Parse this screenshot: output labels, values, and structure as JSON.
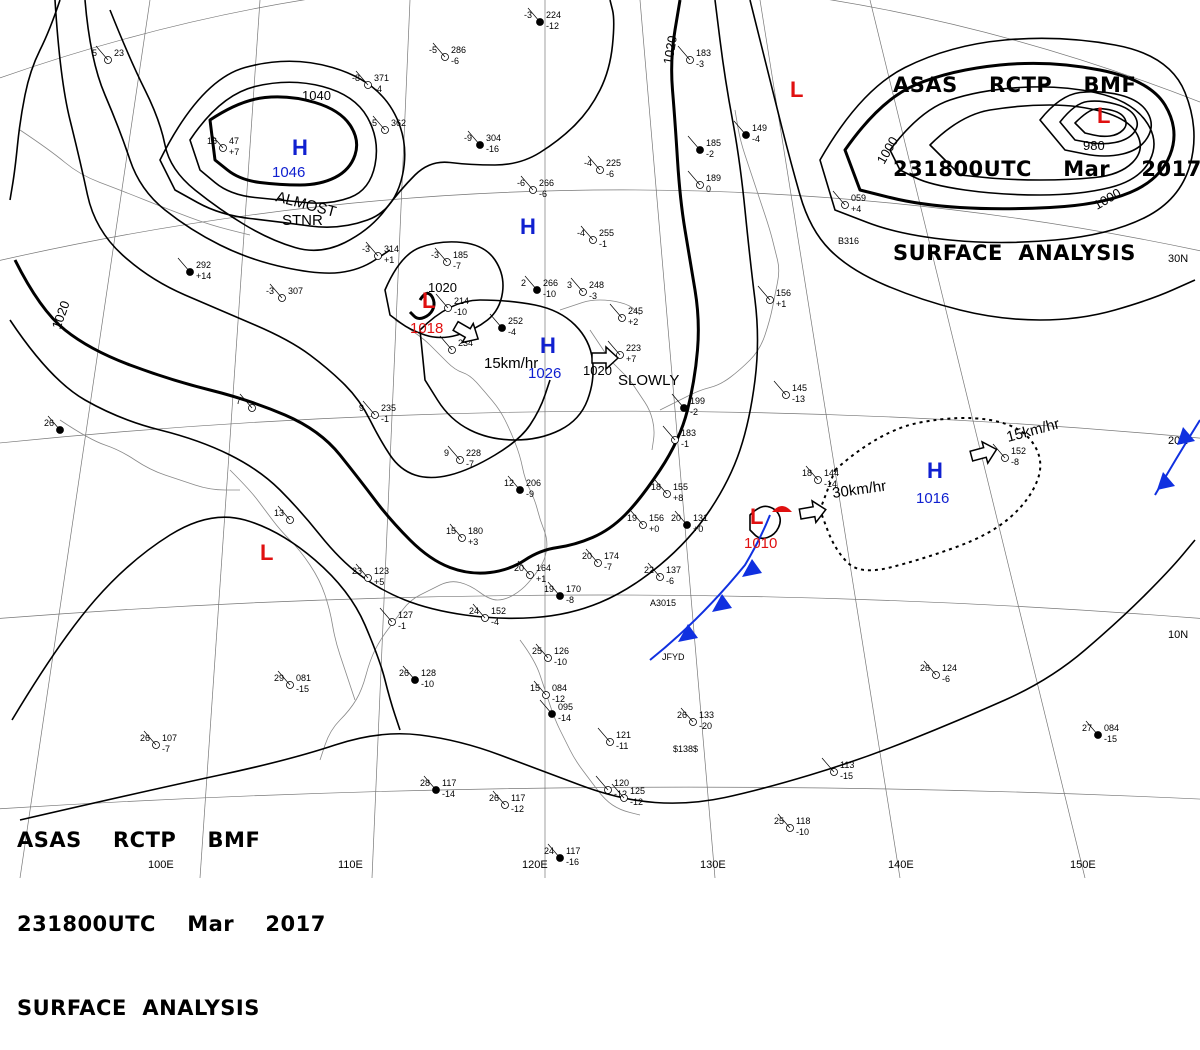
{
  "header": {
    "line1": "ASAS    RCTP    BMF",
    "line2": "231800UTC    Mar    2017",
    "line3": "SURFACE  ANALYSIS"
  },
  "footer": {
    "line1": "ASAS    RCTP    BMF",
    "line2": "231800UTC    Mar    2017",
    "line3": "SURFACE  ANALYSIS"
  },
  "grid": {
    "latitude_labels": [
      "30N",
      "20N",
      "10N"
    ],
    "longitude_labels": [
      "100E",
      "110E",
      "120E",
      "130E",
      "140E",
      "150E"
    ]
  },
  "isobar_labels": [
    "1040",
    "1020",
    "1020",
    "1020",
    "1020",
    "1000",
    "1000",
    "980"
  ],
  "pressure_centers": [
    {
      "type": "H",
      "pressure": "1046",
      "color": "#1020d0"
    },
    {
      "type": "H",
      "pressure": "",
      "color": "#1020d0"
    },
    {
      "type": "H",
      "pressure": "1026",
      "color": "#1020d0"
    },
    {
      "type": "H",
      "pressure": "1016",
      "color": "#1020d0"
    },
    {
      "type": "L",
      "pressure": "1018",
      "color": "#e01010"
    },
    {
      "type": "L",
      "pressure": "1010",
      "color": "#e01010"
    },
    {
      "type": "L",
      "pressure": "",
      "color": "#e01010"
    },
    {
      "type": "L",
      "pressure": "",
      "color": "#e01010"
    },
    {
      "type": "L",
      "pressure": "980",
      "color": "#e01010"
    }
  ],
  "annotations": {
    "almost": "ALMOST",
    "stnr": "STNR",
    "slowly": "SLOWLY",
    "speed_1018": "15km/hr",
    "speed_1010": "30km/hr",
    "speed_1016": "15km/hr"
  },
  "station_plots": [
    {
      "a": "-3",
      "b": "224",
      "c": "-12"
    },
    {
      "a": "-5",
      "b": "286",
      "c": "-6"
    },
    {
      "a": "-8",
      "b": "371",
      "c": "-4"
    },
    {
      "a": "-5",
      "b": "362",
      "c": ""
    },
    {
      "a": "-9",
      "b": "304",
      "c": "-16"
    },
    {
      "a": "-4",
      "b": "225",
      "c": "-6"
    },
    {
      "a": "-6",
      "b": "266",
      "c": "-6"
    },
    {
      "a": "-4",
      "b": "255",
      "c": "-1"
    },
    {
      "a": "2",
      "b": "266",
      "c": "-10"
    },
    {
      "a": "3",
      "b": "248",
      "c": "-3"
    },
    {
      "a": "-3",
      "b": "185",
      "c": "-7"
    },
    {
      "a": "",
      "b": "214",
      "c": "-10"
    },
    {
      "a": "",
      "b": "252",
      "c": "-4"
    },
    {
      "a": "",
      "b": "234",
      "c": ""
    },
    {
      "a": "-3",
      "b": "314",
      "c": "+1"
    },
    {
      "a": "-3",
      "b": "307",
      "c": ""
    },
    {
      "a": "",
      "b": "292",
      "c": "+14"
    },
    {
      "a": "",
      "b": "245",
      "c": "+2"
    },
    {
      "a": "",
      "b": "223",
      "c": "+7"
    },
    {
      "a": "",
      "b": "183",
      "c": "-3"
    },
    {
      "a": "",
      "b": "185",
      "c": "-2"
    },
    {
      "a": "",
      "b": "189",
      "c": "0"
    },
    {
      "a": "",
      "b": "156",
      "c": "+1"
    },
    {
      "a": "",
      "b": "145",
      "c": "-13"
    },
    {
      "a": "",
      "b": "199",
      "c": "-2"
    },
    {
      "a": "",
      "b": "183",
      "c": "-1"
    },
    {
      "a": "9",
      "b": "235",
      "c": "-1"
    },
    {
      "a": "9",
      "b": "228",
      "c": "-7"
    },
    {
      "a": "12",
      "b": "206",
      "c": "-9"
    },
    {
      "a": "15",
      "b": "180",
      "c": "+3"
    },
    {
      "a": "18",
      "b": "155",
      "c": "+8"
    },
    {
      "a": "19",
      "b": "156",
      "c": "+0"
    },
    {
      "a": "20",
      "b": "131",
      "c": "+0"
    },
    {
      "a": "20",
      "b": "174",
      "c": "-7"
    },
    {
      "a": "22",
      "b": "137",
      "c": "-6"
    },
    {
      "a": "20",
      "b": "164",
      "c": "+1"
    },
    {
      "a": "19",
      "b": "170",
      "c": "-8"
    },
    {
      "a": "23",
      "b": "123",
      "c": "+5"
    },
    {
      "a": "24",
      "b": "152",
      "c": "-4"
    },
    {
      "a": "",
      "b": "127",
      "c": "-1"
    },
    {
      "a": "26",
      "b": "128",
      "c": "-10"
    },
    {
      "a": "29",
      "b": "081",
      "c": "-15"
    },
    {
      "a": "25",
      "b": "126",
      "c": "-10"
    },
    {
      "a": "15",
      "b": "084",
      "c": "-12"
    },
    {
      "a": "",
      "b": "095",
      "c": "-14"
    },
    {
      "a": "",
      "b": "121",
      "c": "-11"
    },
    {
      "a": "26",
      "b": "133",
      "c": "-20"
    },
    {
      "a": "26",
      "b": "107",
      "c": "-7"
    },
    {
      "a": "28",
      "b": "117",
      "c": "-14"
    },
    {
      "a": "26",
      "b": "117",
      "c": "-12"
    },
    {
      "a": "",
      "b": "120",
      "c": "-12"
    },
    {
      "a": "",
      "b": "125",
      "c": "-12"
    },
    {
      "a": "24",
      "b": "117",
      "c": "-16"
    },
    {
      "a": "25",
      "b": "118",
      "c": "-10"
    },
    {
      "a": "",
      "b": "113",
      "c": "-15"
    },
    {
      "a": "26",
      "b": "124",
      "c": "-6"
    },
    {
      "a": "27",
      "b": "084",
      "c": "-15"
    },
    {
      "a": "18",
      "b": "144",
      "c": "-14"
    },
    {
      "a": "",
      "b": "152",
      "c": "-8"
    },
    {
      "a": "",
      "b": "059",
      "c": "+4"
    },
    {
      "a": "",
      "b": "149",
      "c": "-4"
    },
    {
      "a": "16",
      "b": "47",
      "c": "+7"
    },
    {
      "a": "5",
      "b": "23",
      "c": ""
    },
    {
      "a": "13",
      "b": "",
      "c": ""
    },
    {
      "a": "26",
      "b": "",
      "c": ""
    },
    {
      "a": "7",
      "b": "",
      "c": ""
    }
  ],
  "station_ids": [
    "A3015",
    "JFYD",
    "B316",
    "$138$"
  ]
}
